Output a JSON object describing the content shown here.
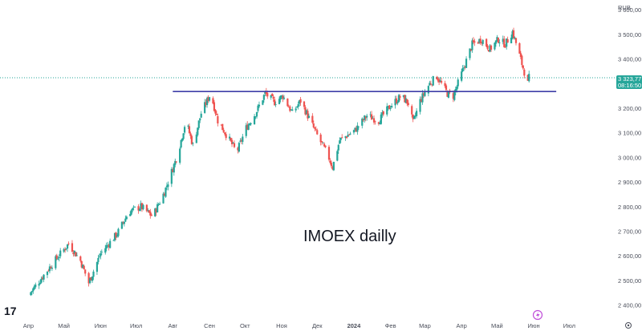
{
  "chart_data": {
    "type": "candlestick",
    "title": "",
    "annotation": "IMOEX dailly",
    "currency": "RUB",
    "xlabel": "",
    "ylabel": "",
    "x_ticks": [
      "Апр",
      "Май",
      "Июн",
      "Июл",
      "Авг",
      "Сен",
      "Окт",
      "Ноя",
      "Дек",
      "2024",
      "Фев",
      "Мар",
      "Апр",
      "Май",
      "Июн",
      "Июл"
    ],
    "y_ticks": [
      "3 600,00",
      "3 500,00",
      "3 400,00",
      "3 300,00",
      "3 200,00",
      "3 100,00",
      "3 000,00",
      "2 900,00",
      "2 800,00",
      "2 700,00",
      "2 600,00",
      "2 500,00",
      "2 400,00"
    ],
    "ylim": [
      2350,
      3630
    ],
    "current_price": "3 323,77",
    "current_time": "08:16:50",
    "resistance_level": 3268,
    "colors": {
      "up": "#26a69a",
      "down": "#ef5350",
      "level_line": "#3d3da8",
      "price_line": "#26a69a",
      "price_label_bg": "#26a69a"
    },
    "close_path": [
      [
        "2023-04-01",
        2440
      ],
      [
        "2023-04-20",
        2560
      ],
      [
        "2023-05-05",
        2650
      ],
      [
        "2023-05-15",
        2580
      ],
      [
        "2023-05-22",
        2490
      ],
      [
        "2023-06-01",
        2610
      ],
      [
        "2023-06-15",
        2690
      ],
      [
        "2023-06-25",
        2780
      ],
      [
        "2023-07-05",
        2800
      ],
      [
        "2023-07-15",
        2760
      ],
      [
        "2023-07-25",
        2860
      ],
      [
        "2023-08-05",
        3010
      ],
      [
        "2023-08-12",
        3150
      ],
      [
        "2023-08-18",
        3050
      ],
      [
        "2023-08-25",
        3180
      ],
      [
        "2023-09-02",
        3260
      ],
      [
        "2023-09-08",
        3150
      ],
      [
        "2023-09-18",
        3070
      ],
      [
        "2023-09-24",
        3020
      ],
      [
        "2023-10-02",
        3120
      ],
      [
        "2023-10-10",
        3180
      ],
      [
        "2023-10-18",
        3260
      ],
      [
        "2023-10-26",
        3225
      ],
      [
        "2023-11-02",
        3250
      ],
      [
        "2023-11-10",
        3180
      ],
      [
        "2023-11-17",
        3230
      ],
      [
        "2023-11-25",
        3150
      ],
      [
        "2023-12-02",
        3080
      ],
      [
        "2023-12-10",
        3010
      ],
      [
        "2023-12-14",
        2960
      ],
      [
        "2023-12-20",
        3070
      ],
      [
        "2024-01-02",
        3110
      ],
      [
        "2024-01-12",
        3170
      ],
      [
        "2024-01-22",
        3150
      ],
      [
        "2024-02-01",
        3210
      ],
      [
        "2024-02-10",
        3250
      ],
      [
        "2024-02-16",
        3220
      ],
      [
        "2024-02-20",
        3140
      ],
      [
        "2024-02-26",
        3230
      ],
      [
        "2024-03-05",
        3300
      ],
      [
        "2024-03-11",
        3330
      ],
      [
        "2024-03-20",
        3260
      ],
      [
        "2024-03-25",
        3250
      ],
      [
        "2024-04-01",
        3340
      ],
      [
        "2024-04-10",
        3460
      ],
      [
        "2024-04-18",
        3480
      ],
      [
        "2024-04-25",
        3440
      ],
      [
        "2024-05-02",
        3480
      ],
      [
        "2024-05-08",
        3460
      ],
      [
        "2024-05-14",
        3510
      ],
      [
        "2024-05-18",
        3450
      ],
      [
        "2024-05-22",
        3380
      ],
      [
        "2024-05-27",
        3300
      ],
      [
        "2024-05-28",
        3324
      ]
    ]
  },
  "branding": {
    "logo_text": "17"
  },
  "icons": {
    "lightning": "lightning-icon",
    "settings": "settings-icon"
  }
}
